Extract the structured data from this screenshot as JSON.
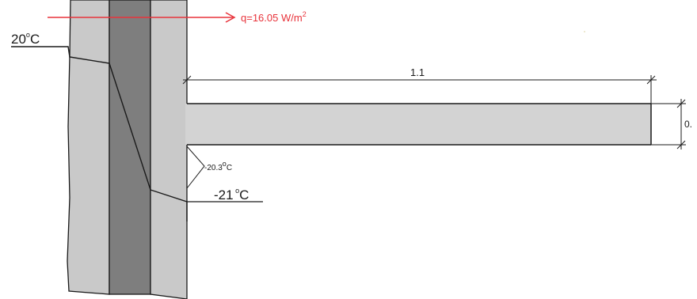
{
  "heat_flux": {
    "label": "q=16.05 W/m",
    "superscript": "2"
  },
  "temperatures": {
    "inside": {
      "value": "20",
      "unit": "C"
    },
    "surface_corner": {
      "value": "-20.3",
      "unit": "C"
    },
    "outside": {
      "value": "-21",
      "unit": "C"
    }
  },
  "dimensions": {
    "balcony_length": "1.1",
    "balcony_thickness": "0."
  },
  "colors": {
    "outer_layer": "#c9c9c9",
    "insulation_layer": "#7e7e7e",
    "balcony_slab": "#d3d3d3",
    "heat_flux_arrow": "#e8323a",
    "lines": "#1a1a1a"
  }
}
